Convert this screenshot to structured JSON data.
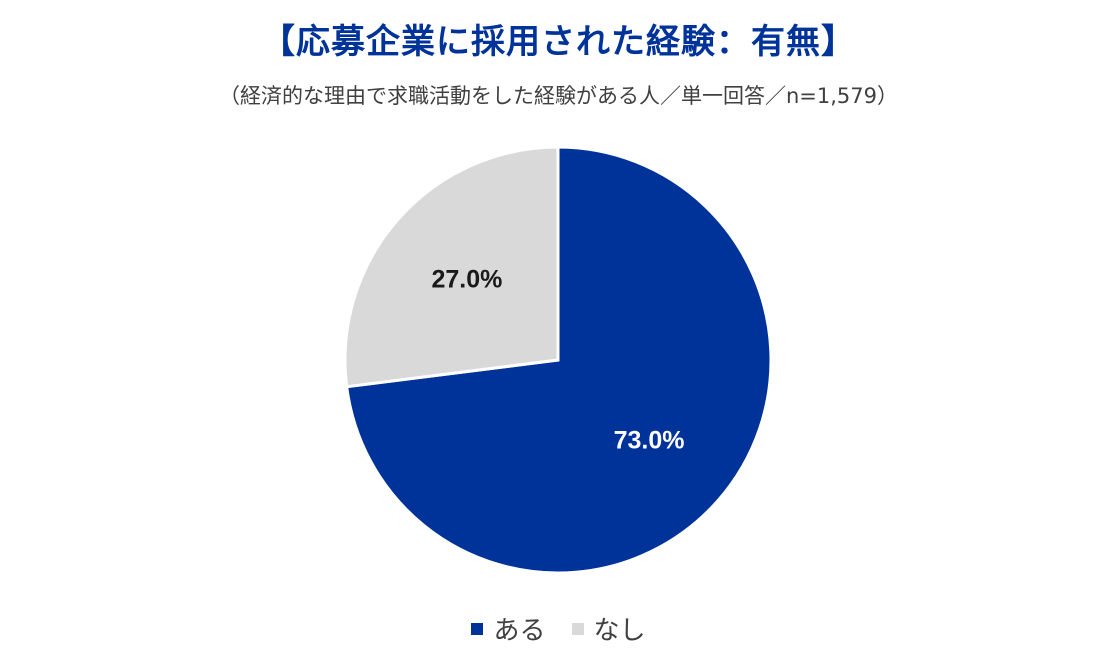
{
  "title": "【応募企業に採用された経験：有無】",
  "subtitle": "（経済的な理由で求職活動をした経験がある人／単一回答／n=1,579）",
  "chart_data": {
    "type": "pie",
    "title": "【応募企業に採用された経験：有無】",
    "subtitle": "（経済的な理由で求職活動をした経験がある人／単一回答／n=1,579）",
    "slices": [
      {
        "label": "ある",
        "value": 73.0,
        "display": "73.0%",
        "color": "#003399",
        "label_color": "#ffffff"
      },
      {
        "label": "なし",
        "value": 27.0,
        "display": "27.0%",
        "color": "#d9d9d9",
        "label_color": "#1a1a1a"
      }
    ],
    "start_angle": "12 o'clock",
    "direction": "clockwise",
    "legend_position": "bottom"
  }
}
